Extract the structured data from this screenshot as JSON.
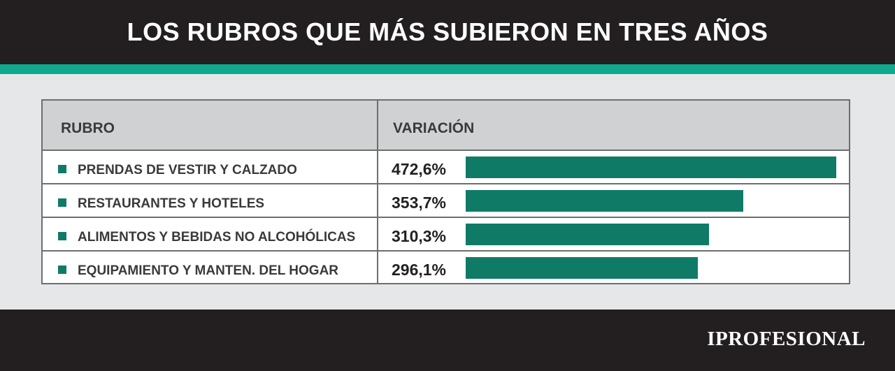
{
  "title": "LOS RUBROS QUE MÁS SUBIERON EN TRES AÑOS",
  "table": {
    "col_rubro": "RUBRO",
    "col_variacion": "VARIACIÓN"
  },
  "chart_data": {
    "type": "bar",
    "title": "LOS RUBROS QUE MÁS SUBIERON EN TRES AÑOS",
    "categories": [
      "PRENDAS DE VESTIR Y CALZADO",
      "RESTAURANTES Y HOTELES",
      "ALIMENTOS Y BEBIDAS NO ALCOHÓLICAS",
      "EQUIPAMIENTO Y MANTEN. DEL HOGAR"
    ],
    "values": [
      472.6,
      353.7,
      310.3,
      296.1
    ],
    "value_labels": [
      "472,6%",
      "353,7%",
      "310,3%",
      "296,1%"
    ],
    "orientation": "horizontal",
    "colors": {
      "bar": "#0f7b67",
      "accent": "#11a98e",
      "header": "#231f20"
    }
  },
  "footer": {
    "logo": "IPROFESIONAL"
  }
}
